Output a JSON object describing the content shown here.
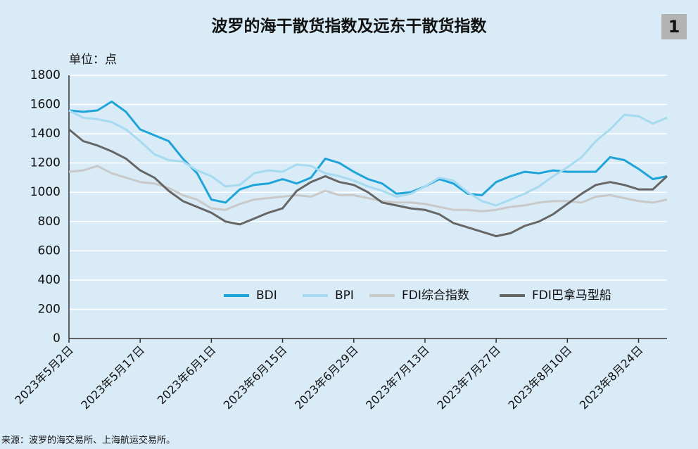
{
  "title": "波罗的海干散货指数及远东干散货指数",
  "badge": "1",
  "unit_label": "单位：点",
  "source": "来源：波罗的海交易所、上海航运交易所。",
  "chart_data": {
    "type": "line",
    "categories": [
      "2023年5月2日",
      null,
      null,
      null,
      null,
      "2023年5月17日",
      null,
      null,
      null,
      null,
      "2023年6月1日",
      null,
      null,
      null,
      null,
      "2023年6月15日",
      null,
      null,
      null,
      null,
      "2023年6月29日",
      null,
      null,
      null,
      null,
      "2023年7月13日",
      null,
      null,
      null,
      null,
      "2023年7月27日",
      null,
      null,
      null,
      null,
      "2023年8月10日",
      null,
      null,
      null,
      null,
      "2023年8月24日",
      null,
      null
    ],
    "series": [
      {
        "name": "BDI",
        "color": "#1ea4d8",
        "values": [
          1560,
          1550,
          1560,
          1620,
          1550,
          1430,
          1390,
          1350,
          1230,
          1130,
          950,
          930,
          1020,
          1050,
          1060,
          1090,
          1060,
          1100,
          1230,
          1200,
          1140,
          1090,
          1060,
          990,
          1000,
          1040,
          1090,
          1060,
          990,
          980,
          1070,
          1110,
          1140,
          1130,
          1150,
          1140,
          1140,
          1140,
          1240,
          1220,
          1160,
          1090,
          1110
        ]
      },
      {
        "name": "BPI",
        "color": "#a6daf1",
        "values": [
          1560,
          1510,
          1500,
          1480,
          1430,
          1350,
          1260,
          1220,
          1210,
          1150,
          1110,
          1040,
          1050,
          1130,
          1150,
          1140,
          1190,
          1180,
          1130,
          1110,
          1080,
          1040,
          1010,
          970,
          990,
          1040,
          1100,
          1080,
          1000,
          940,
          910,
          950,
          990,
          1040,
          1110,
          1170,
          1240,
          1350,
          1430,
          1530,
          1520,
          1470,
          1510
        ]
      },
      {
        "name": "FDI综合指数",
        "color": "#c9c9c9",
        "values": [
          1140,
          1150,
          1180,
          1130,
          1100,
          1070,
          1060,
          1030,
          980,
          950,
          890,
          880,
          920,
          950,
          960,
          970,
          980,
          970,
          1010,
          980,
          980,
          960,
          940,
          930,
          930,
          920,
          900,
          880,
          880,
          870,
          880,
          900,
          910,
          930,
          940,
          940,
          930,
          970,
          980,
          960,
          940,
          930,
          950
        ]
      },
      {
        "name": "FDI巴拿马型船",
        "color": "#666666",
        "values": [
          1430,
          1350,
          1320,
          1280,
          1230,
          1150,
          1100,
          1010,
          940,
          900,
          860,
          800,
          780,
          820,
          860,
          890,
          1010,
          1070,
          1110,
          1070,
          1050,
          1000,
          930,
          910,
          890,
          880,
          850,
          790,
          760,
          730,
          700,
          720,
          770,
          800,
          850,
          920,
          990,
          1050,
          1070,
          1050,
          1020,
          1020,
          1110
        ]
      }
    ],
    "ylim": [
      0,
      1800
    ],
    "yticks": [
      0,
      200,
      400,
      600,
      800,
      1000,
      1200,
      1400,
      1600,
      1800
    ],
    "grid": true,
    "legend": "bottom"
  }
}
